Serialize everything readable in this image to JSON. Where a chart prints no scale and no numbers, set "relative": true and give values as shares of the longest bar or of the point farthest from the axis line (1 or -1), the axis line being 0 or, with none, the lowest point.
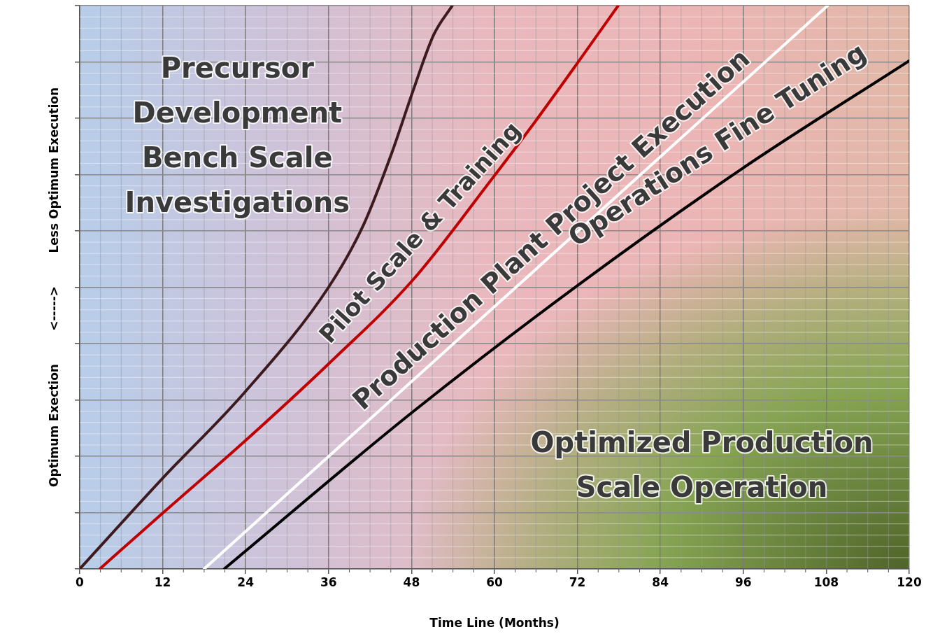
{
  "chart_data": {
    "type": "line",
    "relative": true,
    "xlabel": "Time Line (Months)",
    "ylabel": "Optimum Exection        <----->        Less Optimum Execution",
    "xlim": [
      0,
      120
    ],
    "xticks": [
      0,
      12,
      24,
      36,
      48,
      60,
      72,
      84,
      96,
      108,
      120
    ],
    "grid": true,
    "legend": false,
    "marker": "none",
    "line_style": "solid",
    "series": [
      {
        "color": "#3d1a1e",
        "x": [
          0,
          12,
          23.9,
          36,
          41.1,
          45.1,
          48.2,
          51.2,
          53.9
        ],
        "values": [
          0,
          0.161,
          0.314,
          0.5,
          0.612,
          0.737,
          0.848,
          0.948,
          1
        ]
      },
      {
        "color": "#c00000",
        "x": [
          2.9,
          12,
          23.9,
          36,
          48.2,
          59.3,
          65.4,
          72,
          77.9
        ],
        "values": [
          0,
          0.099,
          0.227,
          0.364,
          0.513,
          0.687,
          0.786,
          0.898,
          1
        ]
      },
      {
        "color": "#ffffff",
        "x": [
          18,
          108.2
        ],
        "values": [
          0,
          1
        ]
      },
      {
        "color": "#000000",
        "x": [
          20.9,
          48,
          72,
          96,
          120
        ],
        "values": [
          0,
          0.277,
          0.503,
          0.712,
          0.902
        ]
      }
    ],
    "annotations": [
      "Precursor\nDevelopment\nBench Scale\nInvestigations",
      "Pilot Scale & Training",
      "Production Plant Project Execution",
      "Operations Fine Tuning",
      "Optimized Production\nScale Operation"
    ]
  }
}
